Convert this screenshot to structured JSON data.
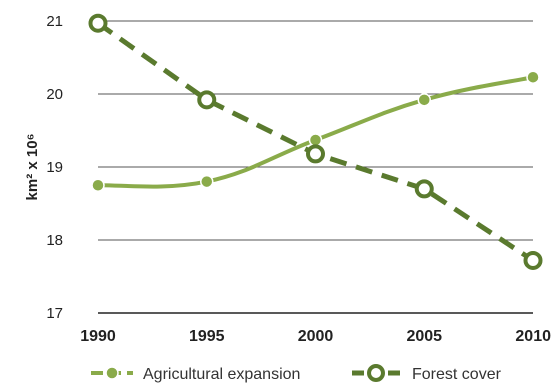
{
  "chart_data": {
    "type": "line",
    "x": [
      1990,
      1995,
      2000,
      2005,
      2010
    ],
    "x_tick_labels": [
      "1990",
      "1995",
      "2000",
      "2005",
      "2010"
    ],
    "ylabel": "km² x 10⁶",
    "ylim": [
      17,
      21
    ],
    "y_ticks": [
      17,
      18,
      19,
      20,
      21
    ],
    "grid": true,
    "legend_position": "bottom",
    "series": [
      {
        "name": "Agricultural expansion",
        "values": [
          18.75,
          18.8,
          19.37,
          19.92,
          20.23
        ],
        "color": "#8aab4a",
        "style": "solid smooth with filled dot markers"
      },
      {
        "name": "Forest cover",
        "values": [
          20.97,
          19.92,
          19.18,
          18.7,
          17.72
        ],
        "color": "#5a7a2e",
        "style": "dashed with open circle markers"
      }
    ]
  }
}
